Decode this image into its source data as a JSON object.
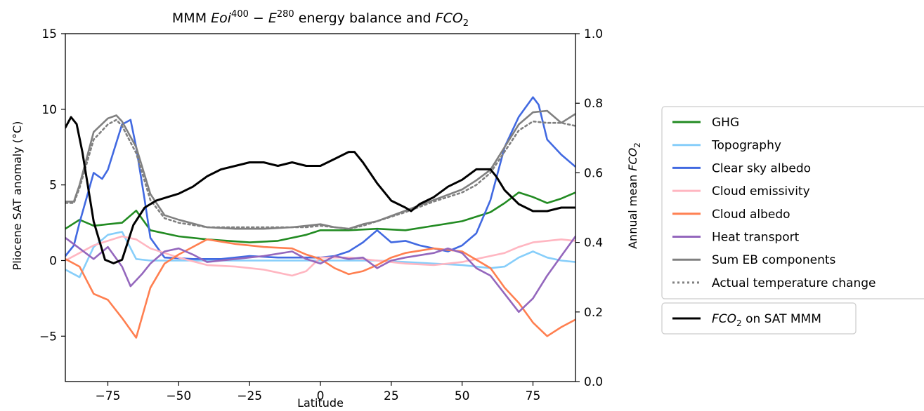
{
  "chart_data": {
    "type": "line",
    "title": {
      "prefix": "MMM ",
      "eoi": "Eoi",
      "eoi_sup": "400",
      "minus": " − ",
      "e": "E",
      "e_sup": "280",
      "middle": " energy balance and ",
      "fco": "FCO",
      "fco_sub": "2"
    },
    "xlabel": "Latitude",
    "ylabel_left": "Pliocene SAT anomaly (°C)",
    "ylabel_right": {
      "prefix": "Annual mean ",
      "fco": "FCO",
      "fco_sub": "2"
    },
    "xlim": [
      -90,
      90
    ],
    "ylim_left": [
      -8,
      15
    ],
    "ylim_right": [
      0.0,
      1.0
    ],
    "xticks": [
      -75,
      -50,
      -25,
      0,
      25,
      50,
      75
    ],
    "xtick_labels": [
      "−75",
      "−50",
      "−25",
      "0",
      "25",
      "50",
      "75"
    ],
    "yticks_left": [
      -5,
      0,
      5,
      10,
      15
    ],
    "ytick_labels_left": [
      "−5",
      "0",
      "5",
      "10",
      "15"
    ],
    "yticks_right": [
      0.0,
      0.2,
      0.4,
      0.6,
      0.8,
      1.0
    ],
    "ytick_labels_right": [
      "0.0",
      "0.2",
      "0.4",
      "0.6",
      "0.8",
      "1.0"
    ],
    "grid": false,
    "legend_placement": "right, outside plot",
    "series": [
      {
        "name": "GHG",
        "color": "#228b22",
        "dashed": false,
        "axis": "left",
        "x": [
          -90,
          -85,
          -80,
          -75,
          -70,
          -65,
          -60,
          -50,
          -40,
          -25,
          -15,
          -5,
          0,
          10,
          20,
          30,
          40,
          50,
          60,
          65,
          70,
          75,
          80,
          85,
          90
        ],
        "y": [
          2.1,
          2.7,
          2.3,
          2.4,
          2.5,
          3.3,
          2.0,
          1.6,
          1.4,
          1.2,
          1.3,
          1.7,
          2.0,
          2.0,
          2.1,
          2.0,
          2.3,
          2.6,
          3.2,
          3.8,
          4.5,
          4.2,
          3.8,
          4.1,
          4.5
        ]
      },
      {
        "name": "Topography",
        "color": "#87cefa",
        "dashed": false,
        "axis": "left",
        "x": [
          -90,
          -85,
          -80,
          -75,
          -70,
          -65,
          -60,
          -50,
          -40,
          -25,
          -15,
          -5,
          0,
          10,
          20,
          30,
          40,
          50,
          60,
          65,
          70,
          75,
          80,
          85,
          90
        ],
        "y": [
          -0.6,
          -1.1,
          0.9,
          1.7,
          1.9,
          0.1,
          0.0,
          0.0,
          0.0,
          0.0,
          0.0,
          0.0,
          0.0,
          0.0,
          0.0,
          -0.1,
          -0.2,
          -0.3,
          -0.5,
          -0.4,
          0.2,
          0.6,
          0.2,
          0.0,
          -0.1
        ]
      },
      {
        "name": "Clear sky albedo",
        "color": "#4169e1",
        "dashed": false,
        "axis": "left",
        "x": [
          -90,
          -87,
          -85,
          -80,
          -77,
          -75,
          -70,
          -67,
          -65,
          -62,
          -60,
          -55,
          -45,
          -35,
          -25,
          -15,
          -5,
          0,
          5,
          10,
          15,
          20,
          25,
          30,
          35,
          40,
          45,
          50,
          55,
          60,
          65,
          70,
          75,
          77,
          80,
          85,
          90
        ],
        "y": [
          0.3,
          1.0,
          2.5,
          5.8,
          5.4,
          6.0,
          9.0,
          9.3,
          7.5,
          4.0,
          1.5,
          0.2,
          0.1,
          0.1,
          0.3,
          0.2,
          0.2,
          0.2,
          0.3,
          0.6,
          1.2,
          2.0,
          1.2,
          1.3,
          1.0,
          0.8,
          0.6,
          1.0,
          1.8,
          4.0,
          7.5,
          9.5,
          10.8,
          10.3,
          8.0,
          7.0,
          6.2
        ]
      },
      {
        "name": "Cloud emissivity",
        "color": "#ffb6c1",
        "dashed": false,
        "axis": "left",
        "x": [
          -90,
          -85,
          -80,
          -75,
          -70,
          -65,
          -60,
          -50,
          -40,
          -30,
          -20,
          -10,
          -5,
          0,
          10,
          20,
          30,
          40,
          50,
          55,
          60,
          65,
          70,
          75,
          80,
          85,
          90
        ],
        "y": [
          0.0,
          0.5,
          1.0,
          1.3,
          1.6,
          1.4,
          0.8,
          0.2,
          -0.3,
          -0.4,
          -0.6,
          -1.0,
          -0.7,
          0.2,
          0.2,
          0.0,
          -0.2,
          -0.3,
          -0.1,
          0.1,
          0.3,
          0.5,
          0.9,
          1.2,
          1.3,
          1.4,
          1.3
        ]
      },
      {
        "name": "Cloud albedo",
        "color": "#ff7f50",
        "dashed": false,
        "axis": "left",
        "x": [
          -90,
          -85,
          -80,
          -75,
          -70,
          -65,
          -60,
          -55,
          -50,
          -40,
          -30,
          -20,
          -10,
          -5,
          0,
          5,
          10,
          15,
          20,
          25,
          30,
          40,
          50,
          60,
          65,
          70,
          75,
          80,
          85,
          90
        ],
        "y": [
          0.1,
          -0.4,
          -2.2,
          -2.6,
          -3.8,
          -5.1,
          -1.8,
          -0.2,
          0.4,
          1.4,
          1.1,
          0.9,
          0.8,
          0.4,
          0.1,
          -0.5,
          -0.9,
          -0.7,
          -0.3,
          0.2,
          0.5,
          0.8,
          0.6,
          -0.5,
          -1.8,
          -2.8,
          -4.1,
          -5.0,
          -4.4,
          -3.9
        ]
      },
      {
        "name": "Heat transport",
        "color": "#9467bd",
        "dashed": false,
        "axis": "left",
        "x": [
          -90,
          -85,
          -80,
          -75,
          -70,
          -67,
          -63,
          -60,
          -55,
          -50,
          -45,
          -40,
          -30,
          -20,
          -10,
          -5,
          0,
          5,
          10,
          15,
          20,
          25,
          30,
          40,
          45,
          50,
          55,
          60,
          65,
          70,
          75,
          80,
          85,
          90
        ],
        "y": [
          1.5,
          0.8,
          0.1,
          0.9,
          -0.4,
          -1.7,
          -0.9,
          -0.2,
          0.6,
          0.8,
          0.4,
          -0.1,
          0.1,
          0.3,
          0.6,
          0.1,
          -0.2,
          0.3,
          0.1,
          0.2,
          -0.5,
          0.0,
          0.2,
          0.5,
          0.8,
          0.5,
          -0.5,
          -1.0,
          -2.2,
          -3.4,
          -2.5,
          -1.0,
          0.3,
          1.6
        ]
      },
      {
        "name": "Sum EB components",
        "color": "#808080",
        "dashed": false,
        "axis": "left",
        "x": [
          -90,
          -87,
          -85,
          -80,
          -75,
          -72,
          -70,
          -65,
          -60,
          -55,
          -50,
          -40,
          -30,
          -20,
          -10,
          -5,
          0,
          5,
          10,
          15,
          20,
          30,
          40,
          50,
          55,
          60,
          65,
          70,
          75,
          80,
          85,
          90
        ],
        "y": [
          3.9,
          3.9,
          5.0,
          8.5,
          9.4,
          9.6,
          9.2,
          7.5,
          4.4,
          3.0,
          2.7,
          2.2,
          2.1,
          2.1,
          2.2,
          2.3,
          2.4,
          2.2,
          2.1,
          2.4,
          2.6,
          3.3,
          4.0,
          4.7,
          5.3,
          6.0,
          7.5,
          9.0,
          9.8,
          9.9,
          9.1,
          9.7
        ]
      },
      {
        "name": "Actual temperature change",
        "color": "#808080",
        "dashed": true,
        "axis": "left",
        "x": [
          -90,
          -87,
          -85,
          -80,
          -75,
          -72,
          -70,
          -65,
          -60,
          -55,
          -50,
          -40,
          -30,
          -20,
          -10,
          -5,
          0,
          5,
          10,
          15,
          20,
          30,
          40,
          50,
          55,
          60,
          65,
          70,
          75,
          80,
          85,
          90
        ],
        "y": [
          3.8,
          3.8,
          4.8,
          8.0,
          9.0,
          9.3,
          8.9,
          7.1,
          4.0,
          2.8,
          2.5,
          2.2,
          2.2,
          2.2,
          2.2,
          2.2,
          2.3,
          2.2,
          2.1,
          2.3,
          2.6,
          3.2,
          3.9,
          4.5,
          5.0,
          5.8,
          7.2,
          8.6,
          9.2,
          9.1,
          9.1,
          8.9
        ]
      },
      {
        "name": "FCO2 on SAT MMM",
        "color": "#000000",
        "dashed": false,
        "axis": "right",
        "x": [
          -90,
          -88,
          -86,
          -84,
          -80,
          -76,
          -73,
          -70,
          -66,
          -62,
          -58,
          -54,
          -50,
          -45,
          -40,
          -35,
          -30,
          -25,
          -20,
          -15,
          -10,
          -5,
          0,
          5,
          10,
          12,
          15,
          20,
          25,
          30,
          32,
          35,
          40,
          45,
          50,
          55,
          58,
          60,
          62,
          65,
          70,
          75,
          80,
          85,
          90
        ],
        "y": [
          0.73,
          0.76,
          0.74,
          0.66,
          0.46,
          0.35,
          0.34,
          0.35,
          0.45,
          0.5,
          0.52,
          0.53,
          0.54,
          0.56,
          0.59,
          0.61,
          0.62,
          0.63,
          0.63,
          0.62,
          0.63,
          0.62,
          0.62,
          0.64,
          0.66,
          0.66,
          0.63,
          0.57,
          0.52,
          0.5,
          0.49,
          0.51,
          0.53,
          0.56,
          0.58,
          0.61,
          0.61,
          0.61,
          0.59,
          0.55,
          0.51,
          0.49,
          0.49,
          0.5,
          0.5
        ]
      }
    ],
    "legend_main": [
      "GHG",
      "Topography",
      "Clear sky albedo",
      "Cloud emissivity",
      "Cloud albedo",
      "Heat transport",
      "Sum EB components",
      "Actual temperature change"
    ],
    "legend_secondary": {
      "fco": "FCO",
      "fco_sub": "2",
      "suffix": " on SAT MMM"
    }
  }
}
